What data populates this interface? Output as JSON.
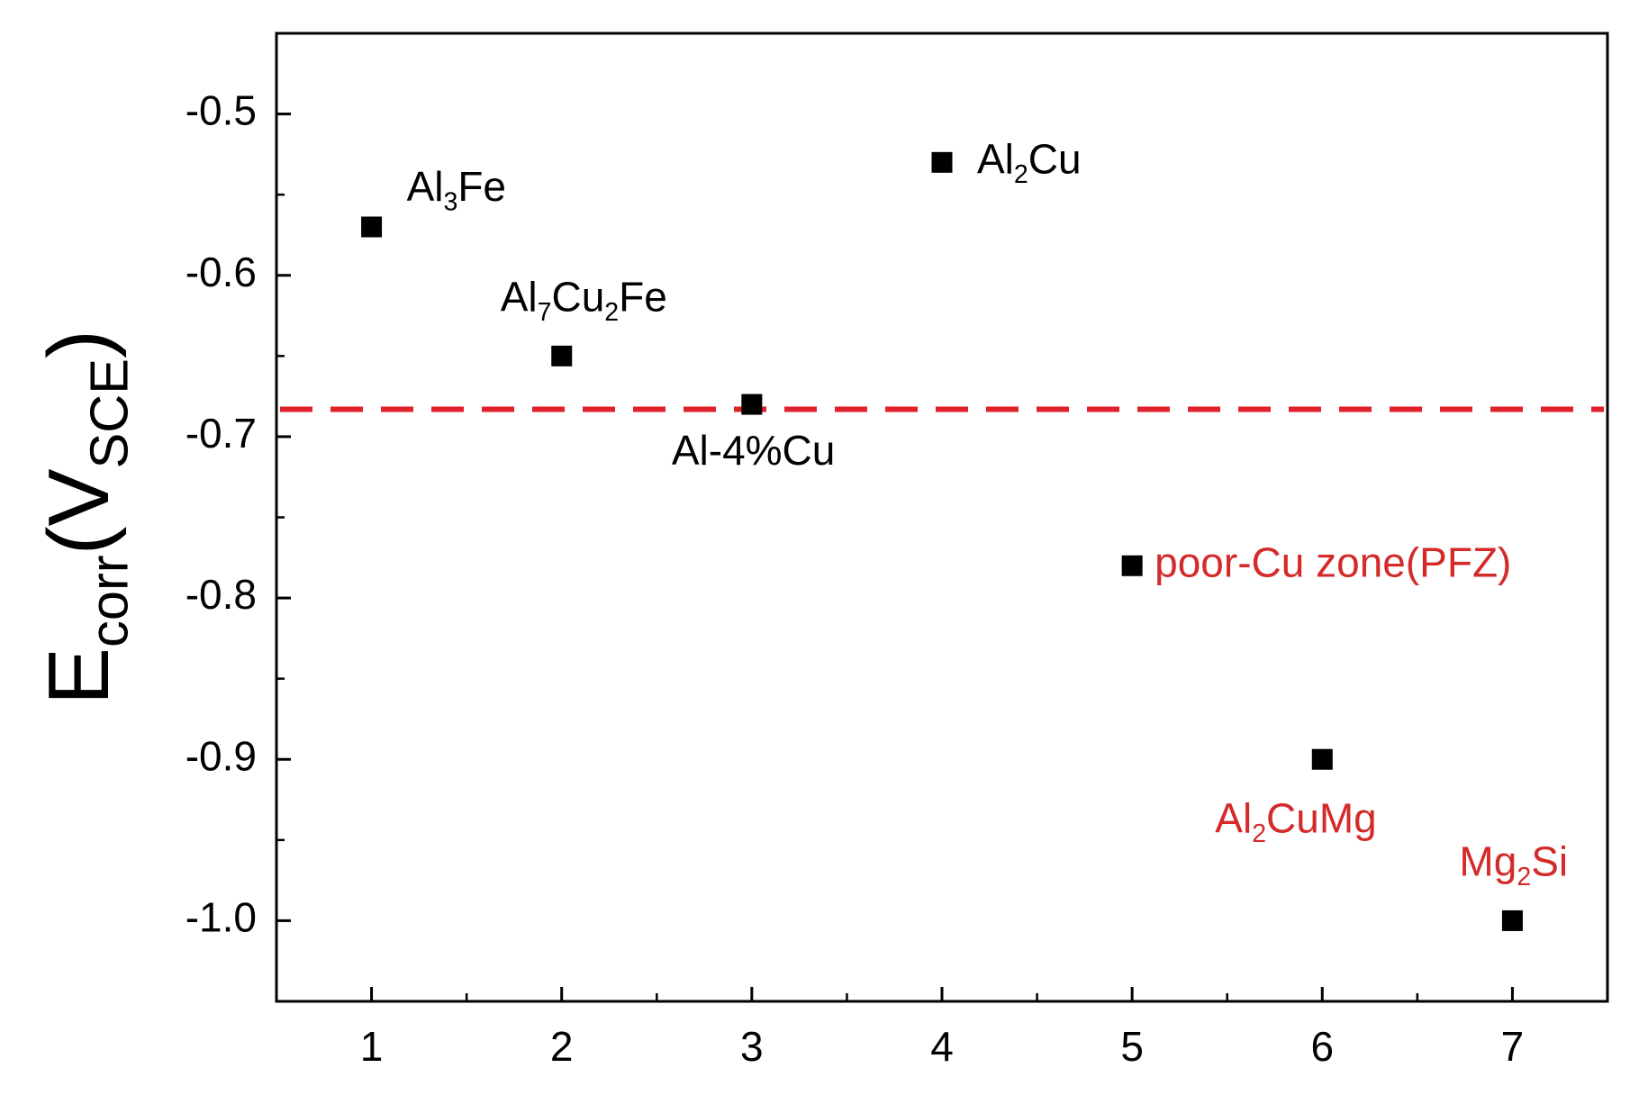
{
  "chart_data": {
    "type": "scatter",
    "x": [
      1,
      2,
      3,
      4,
      5,
      6,
      7
    ],
    "values": [
      -0.57,
      -0.65,
      -0.68,
      -0.53,
      -0.78,
      -0.9,
      -1.0
    ],
    "color": "#000000",
    "point_labels": [
      {
        "parts": [
          "Al",
          "3",
          "Fe"
        ],
        "color": "#000000"
      },
      {
        "parts": [
          "Al",
          "7",
          "Cu",
          "2",
          "Fe"
        ],
        "color": "#000000"
      },
      {
        "parts": [
          "Al-4%Cu"
        ],
        "color": "#000000"
      },
      {
        "parts": [
          "Al",
          "2",
          "Cu"
        ],
        "color": "#000000"
      },
      {
        "parts": [
          "poor-Cu zone(PFZ)"
        ],
        "color": "#d42a2a"
      },
      {
        "parts": [
          "Al",
          "2",
          "CuMg"
        ],
        "color": "#d42a2a"
      },
      {
        "parts": [
          "Mg",
          "2",
          "Si"
        ],
        "color": "#d42a2a"
      }
    ],
    "y_label_parts": [
      "E",
      "corr",
      "(V",
      "SCE",
      ")"
    ],
    "reference_line": {
      "y": -0.683,
      "color": "#e0202a",
      "style": "dashed"
    },
    "xlim": [
      0.5,
      7.5
    ],
    "ylim": [
      -1.05,
      -0.45
    ],
    "xticks": [
      1,
      2,
      3,
      4,
      5,
      6,
      7
    ],
    "xminorticks": [
      1.5,
      2.5,
      3.5,
      4.5,
      5.5,
      6.5
    ],
    "yticks": [
      -0.5,
      -0.6,
      -0.7,
      -0.8,
      -0.9,
      {
        "value": -1.0,
        "label": "-1.0"
      }
    ],
    "yminorticks": [
      -0.55,
      -0.65,
      -0.75,
      -0.85,
      -0.95
    ],
    "grid": false
  }
}
